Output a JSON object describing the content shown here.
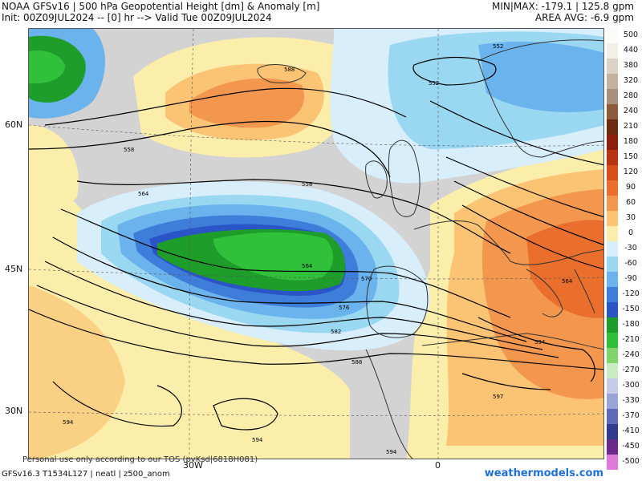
{
  "header": {
    "title": "NOAA GFSv16 | 500 hPa Geopotential Height [dm] & Anomaly [m]",
    "init": "Init: 00Z09JUL2024 -- [0] hr --> Valid Tue 00Z09JUL2024",
    "minmax": "MIN|MAX: -179.1 | 125.8 gpm",
    "area_avg": "AREA AVG: -6.9 gpm"
  },
  "axes": {
    "lat_labels": [
      "60N",
      "45N",
      "30N"
    ],
    "lon_labels": [
      "30W",
      "0"
    ]
  },
  "contour_labels": [
    "552",
    "552",
    "558",
    "558",
    "564",
    "564",
    "564",
    "570",
    "576",
    "582",
    "588",
    "594",
    "594",
    "594",
    "594",
    "597",
    "588"
  ],
  "legend": {
    "items": [
      {
        "label": "500",
        "color": "#fdfbf7"
      },
      {
        "label": "440",
        "color": "#f2eee8"
      },
      {
        "label": "380",
        "color": "#dcd2c6"
      },
      {
        "label": "320",
        "color": "#c4b29f"
      },
      {
        "label": "280",
        "color": "#a8907a"
      },
      {
        "label": "240",
        "color": "#8e5a3c"
      },
      {
        "label": "210",
        "color": "#6f2b10"
      },
      {
        "label": "180",
        "color": "#8e1e0c"
      },
      {
        "label": "150",
        "color": "#b8330f"
      },
      {
        "label": "120",
        "color": "#d84f1b"
      },
      {
        "label": "90",
        "color": "#ea6f2d"
      },
      {
        "label": "60",
        "color": "#f3974f"
      },
      {
        "label": "30",
        "color": "#fac474"
      },
      {
        "label": "0",
        "color": "#fbeeab"
      },
      {
        "label": "-30",
        "color": "#d8eefa"
      },
      {
        "label": "-60",
        "color": "#9ad8f2"
      },
      {
        "label": "-90",
        "color": "#6ab3ec"
      },
      {
        "label": "-120",
        "color": "#3f7ddb"
      },
      {
        "label": "-150",
        "color": "#2a55c6"
      },
      {
        "label": "-180",
        "color": "#1f9d2b"
      },
      {
        "label": "-210",
        "color": "#31c03a"
      },
      {
        "label": "-240",
        "color": "#7fd46a"
      },
      {
        "label": "-270",
        "color": "#c9ecc0"
      },
      {
        "label": "-300",
        "color": "#c7cbe8"
      },
      {
        "label": "-330",
        "color": "#9aa4d8"
      },
      {
        "label": "-370",
        "color": "#5f6bb8"
      },
      {
        "label": "-410",
        "color": "#2f3b8f"
      },
      {
        "label": "-450",
        "color": "#6a2a8c"
      },
      {
        "label": "-500",
        "color": "#e07ad8"
      }
    ]
  },
  "colors": {
    "neutral": "#d3d3d3",
    "land_outline": "#333333"
  },
  "footer": {
    "code": "GFSv16.3 T1534L127 | neatl | z500_anom",
    "disclaimer": "Personal use only according to our TOS (pvKsd|6818H081)",
    "brand": "weathermodels.com"
  }
}
